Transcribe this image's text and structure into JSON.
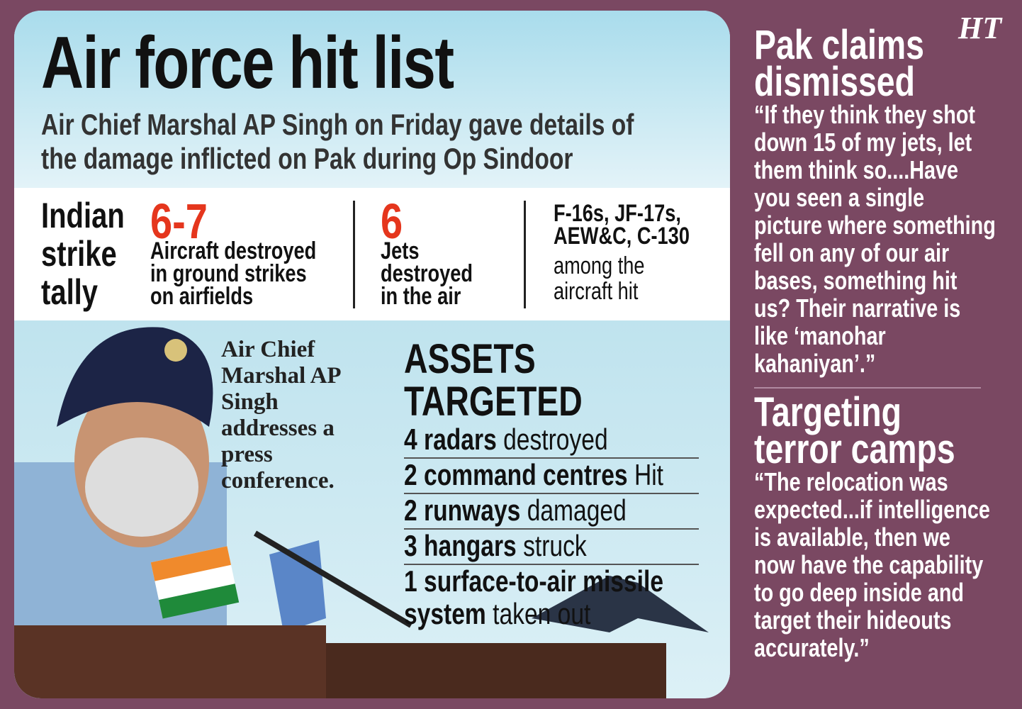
{
  "header": {
    "title": "Air force hit list",
    "subtitle": "Air Chief Marshal AP Singh on Friday gave details of the damage inflicted on Pak during Op Sindoor"
  },
  "tally": {
    "label": "Indian strike tally",
    "stats": [
      {
        "number": "6-7",
        "text": "Aircraft destroyed in ground strikes on airfields"
      },
      {
        "number": "6",
        "text": "Jets destroyed in the air"
      },
      {
        "aircraft": "F-16s, JF-17s, AEW&C, C-130",
        "text": "among the aircraft hit"
      }
    ]
  },
  "photo": {
    "caption": "Air Chief Marshal AP Singh addresses a press conference."
  },
  "assets": {
    "heading": "ASSETS TARGETED",
    "items": [
      {
        "bold": "4 radars",
        "rest": "destroyed"
      },
      {
        "bold": "2 command centres",
        "rest": "Hit"
      },
      {
        "bold": "2 runways",
        "rest": "damaged"
      },
      {
        "bold": "3 hangars",
        "rest": "struck"
      },
      {
        "bold": "1 surface-to-air missile system",
        "rest": "taken out"
      }
    ]
  },
  "sidebar": {
    "logo": "HT",
    "sections": [
      {
        "heading": "Pak claims dismissed",
        "quote": "“If they think they shot down 15 of my jets, let them think so....Have you seen a single picture where something fell on any of our air bases, something hit us? Their narrative is like ‘manohar kahaniyan’.”"
      },
      {
        "heading": "Targeting terror camps",
        "quote": "“The relocation was expected...if intelligence is available, then we now have the capability to go deep inside and target their hideouts accurately.”"
      }
    ]
  }
}
